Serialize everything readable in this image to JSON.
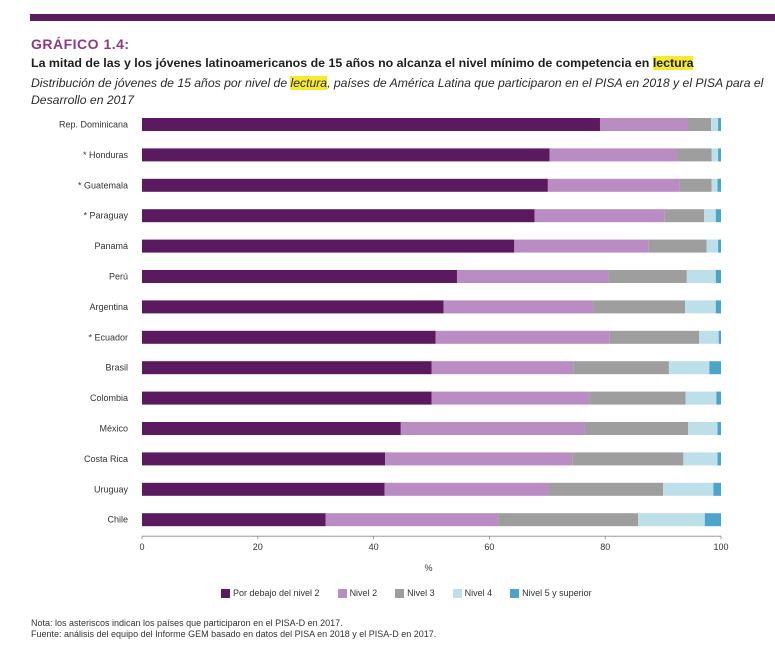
{
  "header": {
    "kicker": "GRÁFICO 1.4:",
    "title_pre": "La mitad de las y los jóvenes latinoamericanos de 15 años no alcanza el nivel mínimo de competencia en ",
    "title_highlight": "lectura",
    "subtitle_pre": "Distribución de jóvenes de 15 años por nivel de ",
    "subtitle_highlight": "lectura",
    "subtitle_post": ", países de América Latina que participaron en el PISA en 2018 y el PISA para el Desarrollo en 2017"
  },
  "chart_data": {
    "type": "bar",
    "orientation": "horizontal",
    "stacked": true,
    "categories": [
      "Rep. Dominicana",
      "* Honduras",
      "* Guatemala",
      "* Paraguay",
      "Panamá",
      "Perú",
      "Argentina",
      "* Ecuador",
      "Brasil",
      "Colombia",
      "México",
      "Costa Rica",
      "Uruguay",
      "Chile"
    ],
    "series": [
      {
        "name": "Por debajo del nivel 2",
        "color": "#5b1a5f",
        "values": [
          79.1,
          70.4,
          70.1,
          67.8,
          64.3,
          54.4,
          52.1,
          50.7,
          50.0,
          50.0,
          44.7,
          42.0,
          41.9,
          31.7
        ]
      },
      {
        "name": "Nivel 2",
        "color": "#b98cc4",
        "values": [
          15.2,
          22.0,
          22.8,
          22.5,
          23.2,
          26.1,
          25.8,
          30.1,
          24.5,
          27.3,
          31.8,
          32.3,
          28.4,
          29.8
        ]
      },
      {
        "name": "Nivel 3",
        "color": "#9e9e9e",
        "values": [
          4.0,
          6.0,
          5.5,
          6.8,
          10.0,
          13.6,
          15.9,
          15.4,
          16.5,
          16.6,
          17.8,
          19.2,
          19.7,
          24.2
        ]
      },
      {
        "name": "Nivel 4",
        "color": "#bcdfe9",
        "values": [
          1.2,
          1.1,
          1.0,
          2.0,
          2.0,
          5.0,
          5.3,
          3.4,
          7.0,
          5.3,
          5.1,
          5.9,
          8.7,
          11.5
        ]
      },
      {
        "name": "Nivel 5 y superior",
        "color": "#4aa5c9",
        "values": [
          0.5,
          0.5,
          0.6,
          0.9,
          0.5,
          0.9,
          0.9,
          0.4,
          2.0,
          0.8,
          0.6,
          0.6,
          1.3,
          2.8
        ]
      }
    ],
    "xlim": [
      0,
      100
    ],
    "xticks": [
      "0",
      "20",
      "40",
      "60",
      "80",
      "100"
    ],
    "xlabel": "%",
    "grid": false,
    "legend_position": "bottom"
  },
  "notes": {
    "note": "Nota: los asteriscos indican los países que participaron en el PISA-D en 2017.",
    "source": "Fuente: análisis del equipo del Informe GEM basado en datos del PISA en 2018 y el PISA-D en 2017."
  }
}
